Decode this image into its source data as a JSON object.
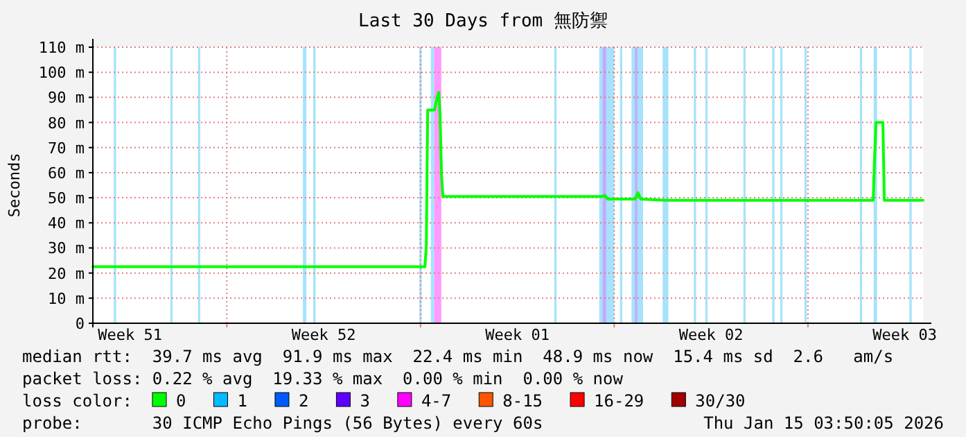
{
  "chart_data": {
    "type": "line",
    "title": "Last 30 Days from 無防禦",
    "ylabel": "Seconds",
    "x": [
      "2025-12-16T03:50",
      "2025-12-28T03:50",
      "2025-12-28T05:02",
      "2025-12-28T06:14",
      "2025-12-28T12:14",
      "2025-12-28T13:26",
      "2025-12-28T15:50",
      "2025-12-28T17:02",
      "2025-12-28T18:14",
      "2025-12-28T19:26",
      "2026-01-03T13:26",
      "2026-01-03T15:50",
      "2026-01-03T18:14",
      "2026-01-04T18:14",
      "2026-01-04T20:38",
      "2026-01-04T23:02",
      "2026-01-05T20:38",
      "2026-01-13T08:38",
      "2026-01-13T09:50",
      "2026-01-13T11:02",
      "2026-01-13T17:02",
      "2026-01-13T18:14",
      "2026-01-15T03:50"
    ],
    "xlim": [
      "2025-12-16T03:50",
      "2026-01-15T03:50"
    ],
    "xticks": [
      {
        "value": "2025-12-17T12:00",
        "label": "Week 51"
      },
      {
        "value": "2025-12-21",
        "label": null
      },
      {
        "value": "2025-12-24T12:00",
        "label": "Week 52"
      },
      {
        "value": "2025-12-28",
        "label": null
      },
      {
        "value": "2025-12-31T12:00",
        "label": "Week 01"
      },
      {
        "value": "2026-01-04",
        "label": null
      },
      {
        "value": "2026-01-07T12:00",
        "label": "Week 02"
      },
      {
        "value": "2026-01-11",
        "label": null
      },
      {
        "value": "2026-01-14T12:00",
        "label": "Week 03"
      }
    ],
    "ylim": [
      0,
      110
    ],
    "yticks": [
      0,
      {
        "value": 10,
        "label": "10 m"
      },
      {
        "value": 20,
        "label": "20 m"
      },
      {
        "value": 30,
        "label": "30 m"
      },
      {
        "value": 40,
        "label": "40 m"
      },
      {
        "value": 50,
        "label": "50 m"
      },
      {
        "value": 60,
        "label": "60 m"
      },
      {
        "value": 70,
        "label": "70 m"
      },
      {
        "value": 80,
        "label": "80 m"
      },
      {
        "value": 90,
        "label": "90 m"
      },
      {
        "value": 100,
        "label": "100 m"
      },
      {
        "value": 110,
        "label": "110 m"
      }
    ],
    "grid": true,
    "marker": "none",
    "line_style": "solid",
    "legend": "bottom",
    "legend_title": "loss color:",
    "series": [
      {
        "name": "0",
        "color": "#00ff00",
        "values": [
          22.5,
          22.5,
          31,
          85,
          85,
          88,
          92,
          82,
          59,
          50.5,
          50.5,
          51,
          49.5,
          49.5,
          52,
          49.5,
          49,
          49,
          66,
          80,
          80,
          49,
          49
        ]
      },
      {
        "name": "1",
        "color": "#00bbff",
        "values": [
          null,
          null,
          null,
          null,
          null,
          null,
          null,
          null,
          null,
          null,
          null,
          null,
          null,
          null,
          null,
          null,
          null,
          null,
          null,
          null,
          null,
          null,
          null
        ]
      },
      {
        "name": "2",
        "color": "#0059ff",
        "values": [
          null,
          null,
          null,
          null,
          null,
          null,
          null,
          null,
          null,
          null,
          null,
          null,
          null,
          null,
          null,
          null,
          null,
          null,
          null,
          null,
          null,
          null,
          null
        ]
      },
      {
        "name": "3",
        "color": "#5e00ff",
        "values": [
          null,
          null,
          null,
          null,
          null,
          null,
          null,
          null,
          null,
          null,
          null,
          null,
          null,
          null,
          null,
          null,
          null,
          null,
          null,
          null,
          null,
          null,
          null
        ]
      },
      {
        "name": "4-7",
        "color": "#ff00ff",
        "values": [
          null,
          null,
          null,
          null,
          null,
          null,
          null,
          null,
          null,
          null,
          null,
          null,
          null,
          null,
          null,
          null,
          null,
          null,
          null,
          null,
          null,
          null,
          null
        ]
      },
      {
        "name": "8-15",
        "color": "#ff5500",
        "values": [
          null,
          null,
          null,
          null,
          null,
          null,
          null,
          null,
          null,
          null,
          null,
          null,
          null,
          null,
          null,
          null,
          null,
          null,
          null,
          null,
          null,
          null,
          null
        ]
      },
      {
        "name": "16-29",
        "color": "#ff0000",
        "values": [
          null,
          null,
          null,
          null,
          null,
          null,
          null,
          null,
          null,
          null,
          null,
          null,
          null,
          null,
          null,
          null,
          null,
          null,
          null,
          null,
          null,
          null,
          null
        ]
      },
      {
        "name": "30/30",
        "color": "#a10000",
        "values": [
          null,
          null,
          null,
          null,
          null,
          null,
          null,
          null,
          null,
          null,
          null,
          null,
          null,
          null,
          null,
          null,
          null,
          null,
          null,
          null,
          null,
          null,
          null
        ]
      }
    ],
    "bands": [
      {
        "axis": "x",
        "from": "2025-12-16T22:00",
        "to": "2025-12-17T00:00",
        "color": "#a6e3fb"
      },
      {
        "axis": "x",
        "from": "2025-12-18T23:00",
        "to": "2025-12-19T01:00",
        "color": "#a6e3fb"
      },
      {
        "axis": "x",
        "from": "2025-12-19T23:00",
        "to": "2025-12-20T01:00",
        "color": "#a6e3fb"
      },
      {
        "axis": "x",
        "from": "2025-12-23T18:00",
        "to": "2025-12-23T21:00",
        "color": "#a6e3fb"
      },
      {
        "axis": "x",
        "from": "2025-12-24T03:00",
        "to": "2025-12-24T05:00",
        "color": "#a6e3fb"
      },
      {
        "axis": "x",
        "from": "2025-12-27T23:00",
        "to": "2025-12-28T01:00",
        "color": "#a6e3fb"
      },
      {
        "axis": "x",
        "from": "2025-12-28T09:00",
        "to": "2025-12-28T12:00",
        "color": "#a6e3fb"
      },
      {
        "axis": "x",
        "from": "2025-12-28T12:00",
        "to": "2025-12-28T18:00",
        "color": "#ff99ff"
      },
      {
        "axis": "x",
        "from": "2026-01-01T20:00",
        "to": "2026-01-01T22:00",
        "color": "#a6e3fb"
      },
      {
        "axis": "x",
        "from": "2026-01-03T11:00",
        "to": "2026-01-04T00:00",
        "color": "#a6e3fb"
      },
      {
        "axis": "x",
        "from": "2026-01-03T14:00",
        "to": "2026-01-03T17:00",
        "color": "#c9a6ff"
      },
      {
        "axis": "x",
        "from": "2026-01-04T05:00",
        "to": "2026-01-04T07:00",
        "color": "#a6e3fb"
      },
      {
        "axis": "x",
        "from": "2026-01-04T15:00",
        "to": "2026-01-05T01:00",
        "color": "#a6e3fb"
      },
      {
        "axis": "x",
        "from": "2026-01-04T18:00",
        "to": "2026-01-04T20:00",
        "color": "#c9a6ff"
      },
      {
        "axis": "x",
        "from": "2026-01-05T18:00",
        "to": "2026-01-05T23:00",
        "color": "#a6e3fb"
      },
      {
        "axis": "x",
        "from": "2026-01-06T21:00",
        "to": "2026-01-06T23:00",
        "color": "#a6e3fb"
      },
      {
        "axis": "x",
        "from": "2026-01-07T07:00",
        "to": "2026-01-07T09:00",
        "color": "#a6e3fb"
      },
      {
        "axis": "x",
        "from": "2026-01-08T16:00",
        "to": "2026-01-08T18:00",
        "color": "#a6e3fb"
      },
      {
        "axis": "x",
        "from": "2026-01-09T17:00",
        "to": "2026-01-09T19:00",
        "color": "#a6e3fb"
      },
      {
        "axis": "x",
        "from": "2026-01-10T00:00",
        "to": "2026-01-10T02:00",
        "color": "#a6e3fb"
      },
      {
        "axis": "x",
        "from": "2026-01-10T21:00",
        "to": "2026-01-10T23:00",
        "color": "#a6e3fb"
      },
      {
        "axis": "x",
        "from": "2026-01-12T21:00",
        "to": "2026-01-12T23:00",
        "color": "#a6e3fb"
      },
      {
        "axis": "x",
        "from": "2026-01-13T09:00",
        "to": "2026-01-13T12:00",
        "color": "#a6e3fb"
      },
      {
        "axis": "x",
        "from": "2026-01-14T16:00",
        "to": "2026-01-14T18:00",
        "color": "#a6e3fb"
      }
    ],
    "annotations": [
      "median rtt:  39.7 ms avg  91.9 ms max  22.4 ms min  48.9 ms now  15.4 ms sd  2.6   am/s",
      "packet loss: 0.22 % avg  19.33 % max  0.00 % min  0.00 % now",
      "probe:       30 ICMP Echo Pings (56 Bytes) every 60s",
      "Thu Jan 15 03:50:05 2026"
    ]
  }
}
